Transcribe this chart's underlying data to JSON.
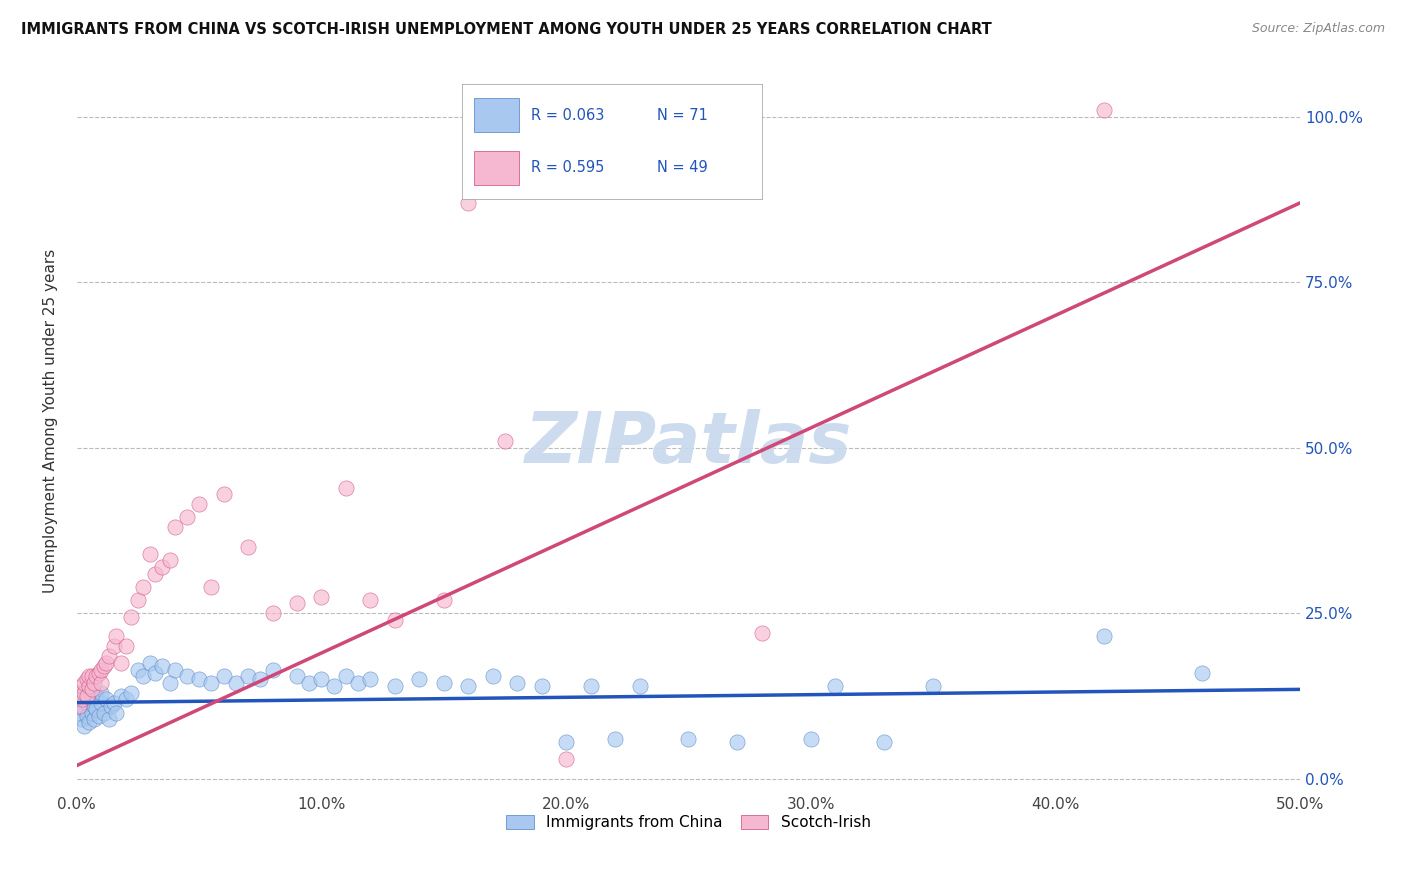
{
  "title": "IMMIGRANTS FROM CHINA VS SCOTCH-IRISH UNEMPLOYMENT AMONG YOUTH UNDER 25 YEARS CORRELATION CHART",
  "source": "Source: ZipAtlas.com",
  "ylabel": "Unemployment Among Youth under 25 years",
  "xlim": [
    0.0,
    0.5
  ],
  "ylim": [
    -0.02,
    1.1
  ],
  "xtick_labels": [
    "0.0%",
    "10.0%",
    "20.0%",
    "30.0%",
    "40.0%",
    "50.0%"
  ],
  "xtick_vals": [
    0.0,
    0.1,
    0.2,
    0.3,
    0.4,
    0.5
  ],
  "ytick_vals": [
    0.0,
    0.25,
    0.5,
    0.75,
    1.0
  ],
  "ytick_labels_right": [
    "0.0%",
    "25.0%",
    "50.0%",
    "75.0%",
    "100.0%"
  ],
  "legend_label1": "Immigrants from China",
  "legend_label2": "Scotch-Irish",
  "R1": "0.063",
  "N1": "71",
  "R2": "0.595",
  "N2": "49",
  "color_china": "#a8c8f0",
  "color_scotch": "#f5b8d0",
  "edge_china": "#5080c0",
  "edge_scotch": "#d04878",
  "trendline_china": "#2255bb",
  "trendline_scotch": "#d04878",
  "watermark_color": "#c8d8ee",
  "china_trendline_x": [
    0.0,
    0.5
  ],
  "china_trendline_y": [
    0.115,
    0.135
  ],
  "scotch_trendline_x": [
    0.0,
    0.5
  ],
  "scotch_trendline_y": [
    0.02,
    0.87
  ],
  "china_x": [
    0.001,
    0.001,
    0.002,
    0.002,
    0.002,
    0.003,
    0.003,
    0.003,
    0.004,
    0.004,
    0.005,
    0.005,
    0.006,
    0.006,
    0.007,
    0.007,
    0.008,
    0.008,
    0.009,
    0.01,
    0.01,
    0.011,
    0.012,
    0.013,
    0.014,
    0.015,
    0.016,
    0.018,
    0.02,
    0.022,
    0.025,
    0.027,
    0.03,
    0.032,
    0.035,
    0.038,
    0.04,
    0.045,
    0.05,
    0.055,
    0.06,
    0.065,
    0.07,
    0.075,
    0.08,
    0.09,
    0.095,
    0.1,
    0.105,
    0.11,
    0.115,
    0.12,
    0.13,
    0.14,
    0.15,
    0.16,
    0.17,
    0.18,
    0.19,
    0.2,
    0.21,
    0.22,
    0.23,
    0.25,
    0.27,
    0.3,
    0.31,
    0.33,
    0.35,
    0.42,
    0.46
  ],
  "china_y": [
    0.1,
    0.12,
    0.09,
    0.11,
    0.13,
    0.08,
    0.105,
    0.125,
    0.095,
    0.115,
    0.085,
    0.135,
    0.1,
    0.12,
    0.09,
    0.11,
    0.105,
    0.125,
    0.095,
    0.115,
    0.13,
    0.1,
    0.12,
    0.09,
    0.11,
    0.115,
    0.1,
    0.125,
    0.12,
    0.13,
    0.165,
    0.155,
    0.175,
    0.16,
    0.17,
    0.145,
    0.165,
    0.155,
    0.15,
    0.145,
    0.155,
    0.145,
    0.155,
    0.15,
    0.165,
    0.155,
    0.145,
    0.15,
    0.14,
    0.155,
    0.145,
    0.15,
    0.14,
    0.15,
    0.145,
    0.14,
    0.155,
    0.145,
    0.14,
    0.055,
    0.14,
    0.06,
    0.14,
    0.06,
    0.055,
    0.06,
    0.14,
    0.055,
    0.14,
    0.215,
    0.16
  ],
  "scotch_x": [
    0.001,
    0.001,
    0.002,
    0.002,
    0.003,
    0.003,
    0.004,
    0.004,
    0.005,
    0.005,
    0.006,
    0.006,
    0.007,
    0.008,
    0.009,
    0.01,
    0.01,
    0.011,
    0.012,
    0.013,
    0.015,
    0.016,
    0.018,
    0.02,
    0.022,
    0.025,
    0.027,
    0.03,
    0.032,
    0.035,
    0.038,
    0.04,
    0.045,
    0.05,
    0.055,
    0.06,
    0.07,
    0.08,
    0.09,
    0.1,
    0.11,
    0.12,
    0.13,
    0.15,
    0.16,
    0.175,
    0.2,
    0.28,
    0.42
  ],
  "scotch_y": [
    0.11,
    0.13,
    0.12,
    0.14,
    0.13,
    0.145,
    0.125,
    0.15,
    0.14,
    0.155,
    0.135,
    0.155,
    0.145,
    0.155,
    0.16,
    0.145,
    0.165,
    0.17,
    0.175,
    0.185,
    0.2,
    0.215,
    0.175,
    0.2,
    0.245,
    0.27,
    0.29,
    0.34,
    0.31,
    0.32,
    0.33,
    0.38,
    0.395,
    0.415,
    0.29,
    0.43,
    0.35,
    0.25,
    0.265,
    0.275,
    0.44,
    0.27,
    0.24,
    0.27,
    0.87,
    0.51,
    0.03,
    0.22,
    1.01
  ]
}
